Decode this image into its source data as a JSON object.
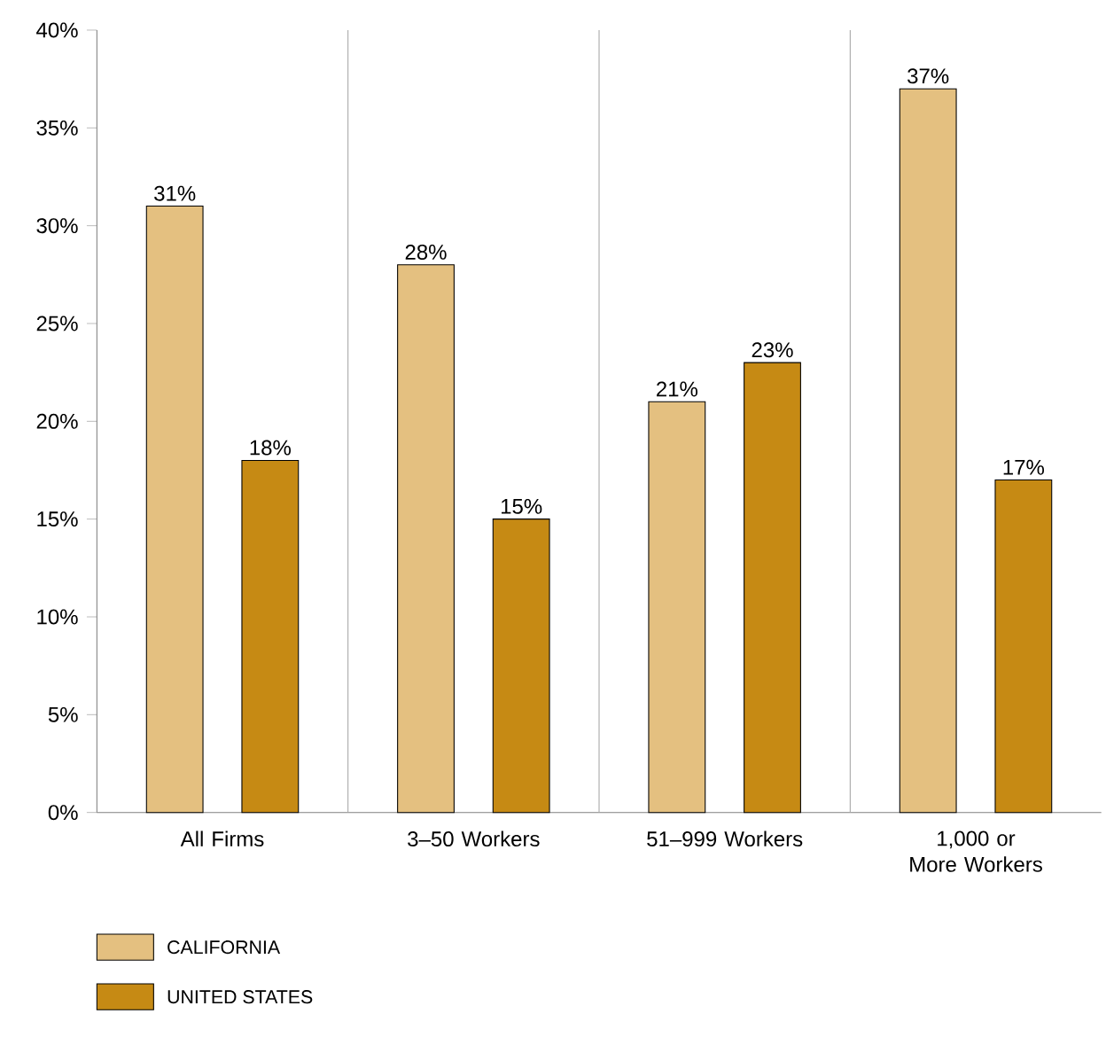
{
  "chart_data": {
    "type": "bar",
    "categories": [
      "All Firms",
      "3–50 Workers",
      "51–999 Workers",
      "1,000 or More Workers"
    ],
    "series": [
      {
        "name": "CALIFORNIA",
        "color": "#e4c080",
        "values": [
          31,
          28,
          21,
          37
        ],
        "value_labels": [
          "31%",
          "28%",
          "21%",
          "37%"
        ]
      },
      {
        "name": "UNITED STATES",
        "color": "#c68a14",
        "values": [
          18,
          15,
          23,
          17
        ],
        "value_labels": [
          "18%",
          "15%",
          "23%",
          "17%"
        ]
      }
    ],
    "ylim": [
      0,
      40
    ],
    "yticks": [
      {
        "value": 0,
        "label": "0%"
      },
      {
        "value": 5,
        "label": "5%"
      },
      {
        "value": 10,
        "label": "10%"
      },
      {
        "value": 15,
        "label": "15%"
      },
      {
        "value": 20,
        "label": "20%"
      },
      {
        "value": 25,
        "label": "25%"
      },
      {
        "value": 30,
        "label": "30%"
      },
      {
        "value": 35,
        "label": "35%"
      },
      {
        "value": 40,
        "label": "40%"
      }
    ],
    "grid": "x",
    "legend": "bottom left"
  }
}
